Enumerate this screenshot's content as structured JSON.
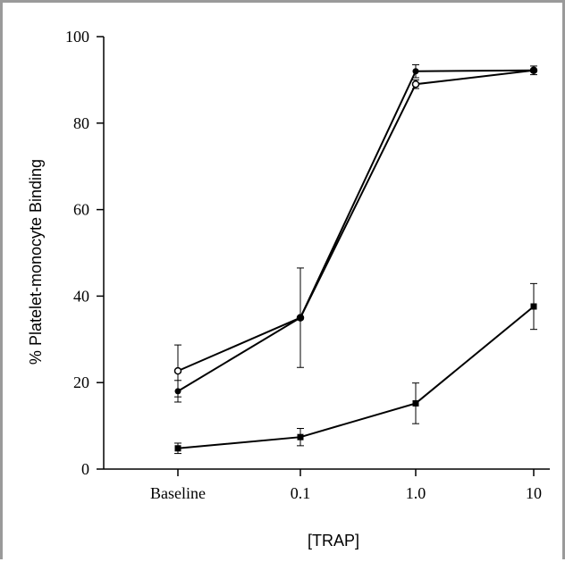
{
  "chart_data": {
    "type": "line",
    "title": "",
    "xlabel": "[TRAP]",
    "ylabel": "%  Platelet-monocyte Binding",
    "categories": [
      "Baseline",
      "0.1",
      "1.0",
      "10"
    ],
    "ylim": [
      0,
      100
    ],
    "yticks": [
      0,
      20,
      40,
      60,
      80,
      100
    ],
    "grid": false,
    "legend": "none",
    "series": [
      {
        "marker": "open-circle",
        "values": [
          22.7,
          35.0,
          89.0,
          92.2
        ],
        "errors": [
          6.0,
          null,
          1.0,
          null
        ]
      },
      {
        "marker": "filled-circle",
        "values": [
          18.0,
          35.0,
          92.0,
          92.2
        ],
        "errors": [
          2.5,
          11.5,
          1.5,
          1.0
        ]
      },
      {
        "marker": "filled-square",
        "values": [
          4.8,
          7.4,
          15.2,
          37.6
        ],
        "errors": [
          1.2,
          2.0,
          4.7,
          5.3
        ]
      }
    ],
    "colors": {
      "line": "#000000",
      "open_fill": "#ffffff"
    }
  }
}
